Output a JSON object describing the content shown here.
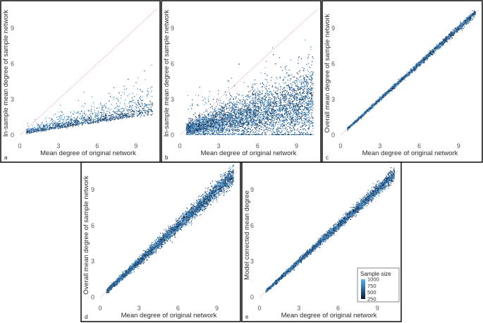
{
  "chart_data": [
    {
      "id": "a",
      "type": "scatter",
      "panel_label": "a",
      "xlabel": "Mean degree of original network",
      "ylabel": "In-sample mean degree of sample network",
      "xlim": [
        0,
        10.6
      ],
      "ylim": [
        -0.5,
        10.9
      ],
      "xticks": [
        0,
        3,
        6,
        9
      ],
      "yticks": [
        0,
        3,
        6,
        9
      ],
      "xtick_labels": [
        "0",
        "3",
        "6",
        "9"
      ],
      "ytick_labels": [
        "0",
        "3",
        "6",
        "9"
      ],
      "reference_line": "y = x",
      "points_summary": {
        "x_range": [
          0.5,
          10.3
        ],
        "y_trend": "0.1 + 0.16*x, widening spread",
        "y_max": 7.5,
        "n": 1300
      }
    },
    {
      "id": "b",
      "type": "scatter",
      "panel_label": "b",
      "xlabel": "Mean degree of original network",
      "ylabel": "In-sample mean degree of sample network",
      "xlim": [
        0,
        10.6
      ],
      "ylim": [
        -0.5,
        10.9
      ],
      "xticks": [
        0,
        3,
        6,
        9
      ],
      "yticks": [
        0,
        3,
        6,
        9
      ],
      "xtick_labels": [
        "0",
        "3",
        "6",
        "9"
      ],
      "ytick_labels": [
        "0",
        "3",
        "6",
        "9"
      ],
      "reference_line": "y = x",
      "points_summary": {
        "x_range": [
          0.5,
          10.3
        ],
        "y_trend": "0.4 + 0.23*x, wide spread",
        "y_max": 8.2,
        "n": 4500
      }
    },
    {
      "id": "c",
      "type": "scatter",
      "panel_label": "c",
      "xlabel": "Mean degree of original network",
      "ylabel": "Overall mean degree of sample network",
      "xlim": [
        0,
        10.6
      ],
      "ylim": [
        -0.5,
        10.9
      ],
      "xticks": [
        0,
        3,
        6,
        9
      ],
      "yticks": [
        0,
        3,
        6,
        9
      ],
      "xtick_labels": [
        "0",
        "3",
        "6",
        "9"
      ],
      "ytick_labels": [
        "0",
        "3",
        "6",
        "9"
      ],
      "reference_line": "y = x",
      "points_summary": {
        "x_range": [
          0.5,
          10.3
        ],
        "y_trend": "y = x, very tight",
        "n": 2500
      }
    },
    {
      "id": "d",
      "type": "scatter",
      "panel_label": "d",
      "xlabel": "Mean degree of original network",
      "ylabel": "Overall mean degree of sample network",
      "xlim": [
        0,
        10.6
      ],
      "ylim": [
        -0.5,
        10.9
      ],
      "xticks": [
        0,
        3,
        6,
        9
      ],
      "yticks": [
        0,
        3,
        6,
        9
      ],
      "xtick_labels": [
        "0",
        "3",
        "6",
        "9"
      ],
      "ytick_labels": [
        "0",
        "3",
        "6",
        "9"
      ],
      "reference_line": "y = x",
      "points_summary": {
        "x_range": [
          0.5,
          10.3
        ],
        "y_trend": "y = x, moderate spread",
        "n": 4000
      }
    },
    {
      "id": "e",
      "type": "scatter",
      "panel_label": "e",
      "xlabel": "Mean degree of original network",
      "ylabel": "Model corrected mean degree",
      "xlim": [
        0,
        10.6
      ],
      "ylim": [
        -0.5,
        10.9
      ],
      "xticks": [
        0,
        3,
        6,
        9
      ],
      "yticks": [
        0,
        3,
        6,
        9
      ],
      "xtick_labels": [
        "0",
        "3",
        "6",
        "9"
      ],
      "ytick_labels": [
        "0",
        "3",
        "6",
        "9"
      ],
      "reference_line": "y = x",
      "points_summary": {
        "x_range": [
          0.5,
          10.3
        ],
        "y_trend": "y = x, tight",
        "n": 3500
      }
    }
  ],
  "legend": {
    "title": "Sample size",
    "labels": [
      "1000",
      "750",
      "500",
      "250"
    ],
    "values": [
      1000,
      750,
      500,
      250
    ],
    "color_low": "#0b1a33",
    "color_high": "#56b1f7",
    "placement": "bottom-right of panel e"
  },
  "colors": {
    "reference_line": "#e8a3a8",
    "frame": "#1a1a1a",
    "axis_text": "#555555"
  }
}
